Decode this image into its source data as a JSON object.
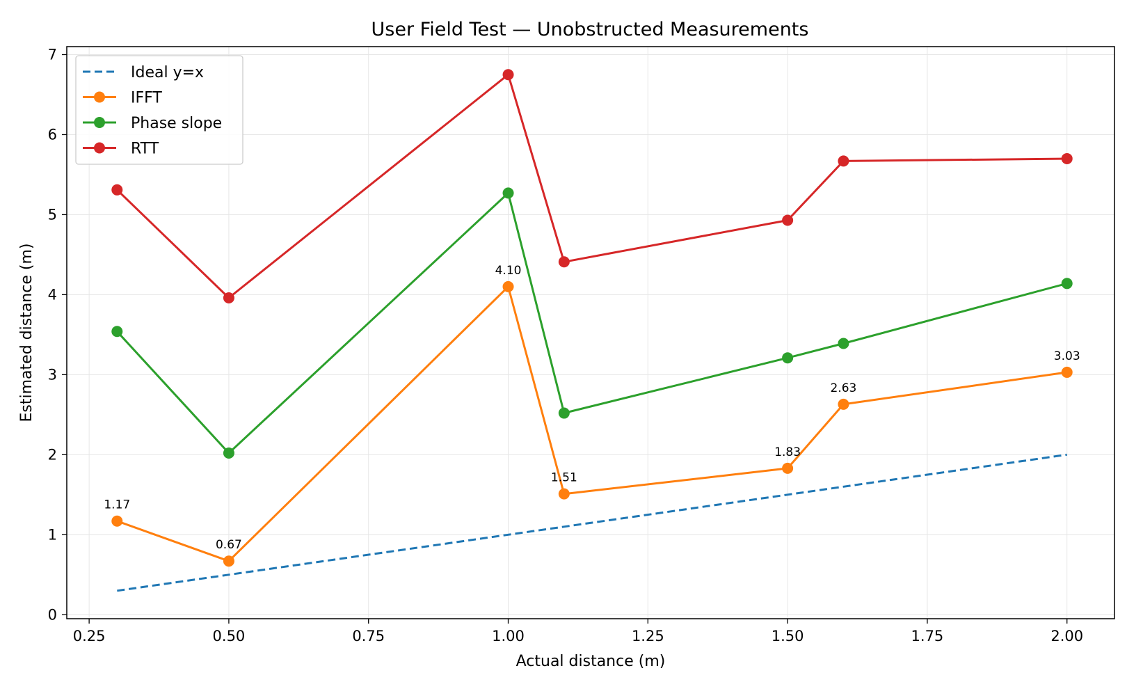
{
  "chart_data": {
    "type": "line",
    "title": "User Field Test — Unobstructed Measurements",
    "xlabel": "Actual distance (m)",
    "ylabel": "Estimated distance (m)",
    "xlim": [
      0.21,
      2.085
    ],
    "ylim": [
      -0.05,
      7.1
    ],
    "xticks": [
      0.25,
      0.5,
      0.75,
      1.0,
      1.25,
      1.5,
      1.75,
      2.0
    ],
    "xtick_labels": [
      "0.25",
      "0.50",
      "0.75",
      "1.00",
      "1.25",
      "1.50",
      "1.75",
      "2.00"
    ],
    "yticks": [
      0,
      1,
      2,
      3,
      4,
      5,
      6,
      7
    ],
    "ytick_labels": [
      "0",
      "1",
      "2",
      "3",
      "4",
      "5",
      "6",
      "7"
    ],
    "grid": true,
    "legend_position": "top-left",
    "x": [
      0.3,
      0.5,
      1.0,
      1.1,
      1.5,
      1.6,
      2.0
    ],
    "series": [
      {
        "name": "Ideal y=x",
        "style": "dashed",
        "markers": false,
        "color": "#1f77b4",
        "values": [
          0.3,
          0.5,
          1.0,
          1.1,
          1.5,
          1.6,
          2.0
        ]
      },
      {
        "name": "IFFT",
        "style": "solid",
        "markers": true,
        "color": "#ff7f0e",
        "values": [
          1.17,
          0.67,
          4.1,
          1.51,
          1.83,
          2.63,
          3.03
        ],
        "data_labels": [
          "1.17",
          "0.67",
          "4.10",
          "1.51",
          "1.83",
          "2.63",
          "3.03"
        ]
      },
      {
        "name": "Phase slope",
        "style": "solid",
        "markers": true,
        "color": "#2ca02c",
        "values": [
          3.54,
          2.02,
          5.27,
          2.52,
          3.21,
          3.39,
          4.14
        ]
      },
      {
        "name": "RTT",
        "style": "solid",
        "markers": true,
        "color": "#d62728",
        "values": [
          5.31,
          3.96,
          6.75,
          4.41,
          4.93,
          5.67,
          5.7
        ]
      }
    ]
  }
}
